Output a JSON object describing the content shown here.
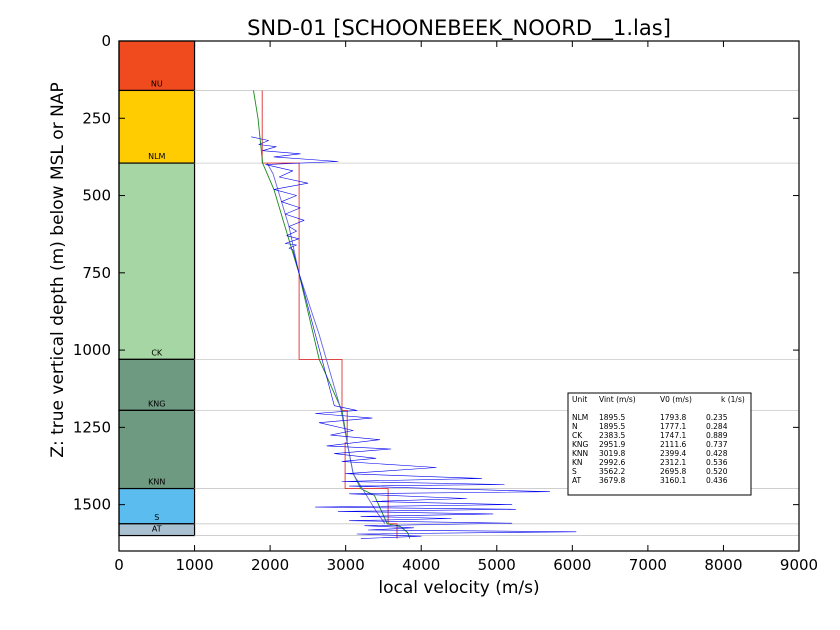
{
  "chart_data": {
    "type": "line",
    "title": "SND-01 [SCHOONEBEEK_NOORD__1.las]",
    "xlabel": "local velocity (m/s)",
    "ylabel": "Z: true vertical depth (m) below MSL or NAP",
    "xlim": [
      0,
      9000
    ],
    "ylim": [
      1650,
      0
    ],
    "y_inverted": true,
    "grid": false,
    "xticks": [
      "0",
      "1000",
      "2000",
      "3000",
      "4000",
      "5000",
      "6000",
      "7000",
      "8000",
      "9000"
    ],
    "yticks": [
      "0",
      "250",
      "500",
      "750",
      "1000",
      "1250",
      "1500"
    ],
    "layers": [
      {
        "name": "NU",
        "top": 0,
        "bottom": 160,
        "color": "#f04a1f"
      },
      {
        "name": "NLM",
        "top": 160,
        "bottom": 395,
        "color": "#fecc00"
      },
      {
        "name": "CK",
        "top": 395,
        "bottom": 1030,
        "color": "#a6d6a3"
      },
      {
        "name": "KNG",
        "top": 1030,
        "bottom": 1195,
        "color": "#6f9a82"
      },
      {
        "name": "KNN",
        "top": 1195,
        "bottom": 1448,
        "color": "#6f9a82"
      },
      {
        "name": "S",
        "top": 1448,
        "bottom": 1562,
        "color": "#5bbcf0"
      },
      {
        "name": "AT",
        "top": 1562,
        "bottom": 1600,
        "color": "#a9c0d0"
      }
    ],
    "boundaries": [
      160,
      395,
      1030,
      1195,
      1448,
      1562,
      1600
    ],
    "series": [
      {
        "style": "step",
        "color": "#e03030",
        "x": [
          1895.5,
          1895.5,
          1895.5,
          2383.5,
          2383.5,
          2951.9,
          2951.9,
          3019.8,
          3019.8,
          2992.6,
          2992.6,
          3562.2,
          3562.2,
          3679.8,
          3679.8
        ],
        "y": [
          160,
          330,
          395,
          395,
          1030,
          1030,
          1195,
          1195,
          1300,
          1300,
          1448,
          1448,
          1562,
          1562,
          1610
        ]
      },
      {
        "style": "line",
        "color": "#1a8a1a",
        "x": [
          1780,
          1840,
          1900,
          2050,
          2380,
          2650,
          2950,
          2990,
          3020,
          3100,
          3200,
          3380,
          3550,
          3720,
          3820,
          3850
        ],
        "y": [
          160,
          250,
          395,
          480,
          750,
          1030,
          1195,
          1250,
          1300,
          1400,
          1448,
          1470,
          1562,
          1570,
          1590,
          1610
        ]
      },
      {
        "style": "line",
        "color": "#6666dd",
        "x": [
          1960,
          2040,
          2250,
          2380,
          2650,
          2940,
          3020,
          3100,
          3250,
          3400,
          3520
        ],
        "y": [
          395,
          430,
          600,
          750,
          950,
          1195,
          1300,
          1400,
          1460,
          1520,
          1562
        ]
      },
      {
        "style": "log",
        "color": "#0000ee",
        "x": [
          1750,
          1980,
          1850,
          2080,
          1900,
          2400,
          2050,
          2900,
          1940,
          2300,
          2120,
          2500,
          2050,
          2350,
          2150,
          2400,
          2200,
          2450,
          2250,
          2350,
          2220,
          2380,
          2200,
          2350,
          2250,
          2300,
          2850,
          3150,
          2600,
          3350,
          2650,
          3100,
          2800,
          3450,
          2750,
          3600,
          2850,
          3400,
          2950,
          4200,
          3000,
          4800,
          2950,
          5100,
          3050,
          5700,
          3050,
          4600,
          3350,
          5200,
          2600,
          5250,
          2900,
          4950,
          3200,
          4400,
          3050,
          5200,
          3250,
          3900,
          3300,
          6050,
          3150,
          4000,
          3200
        ],
        "y": [
          310,
          322,
          335,
          342,
          355,
          365,
          375,
          390,
          400,
          420,
          440,
          460,
          480,
          500,
          520,
          540,
          560,
          580,
          600,
          615,
          630,
          640,
          655,
          660,
          670,
          675,
          1180,
          1195,
          1205,
          1220,
          1235,
          1260,
          1275,
          1290,
          1310,
          1320,
          1335,
          1350,
          1360,
          1380,
          1400,
          1415,
          1425,
          1435,
          1440,
          1458,
          1465,
          1480,
          1490,
          1500,
          1508,
          1515,
          1522,
          1530,
          1538,
          1545,
          1552,
          1560,
          1568,
          1575,
          1582,
          1588,
          1595,
          1602,
          1610
        ]
      }
    ],
    "legend_table": {
      "header": [
        "Unit",
        "Vint (m/s)",
        "V0 (m/s)",
        "k (1/s)"
      ],
      "rows": [
        [
          "NLM",
          "1895.5",
          "1793.8",
          "0.235"
        ],
        [
          "N",
          "1895.5",
          "1777.1",
          "0.284"
        ],
        [
          "CK",
          "2383.5",
          "1747.1",
          "0.889"
        ],
        [
          "KNG",
          "2951.9",
          "2111.6",
          "0.737"
        ],
        [
          "KNN",
          "3019.8",
          "2399.4",
          "0.428"
        ],
        [
          "KN",
          "2992.6",
          "2312.1",
          "0.536"
        ],
        [
          "S",
          "3562.2",
          "2695.8",
          "0.520"
        ],
        [
          "AT",
          "3679.8",
          "3160.1",
          "0.436"
        ]
      ],
      "placement": "lower-right"
    }
  }
}
